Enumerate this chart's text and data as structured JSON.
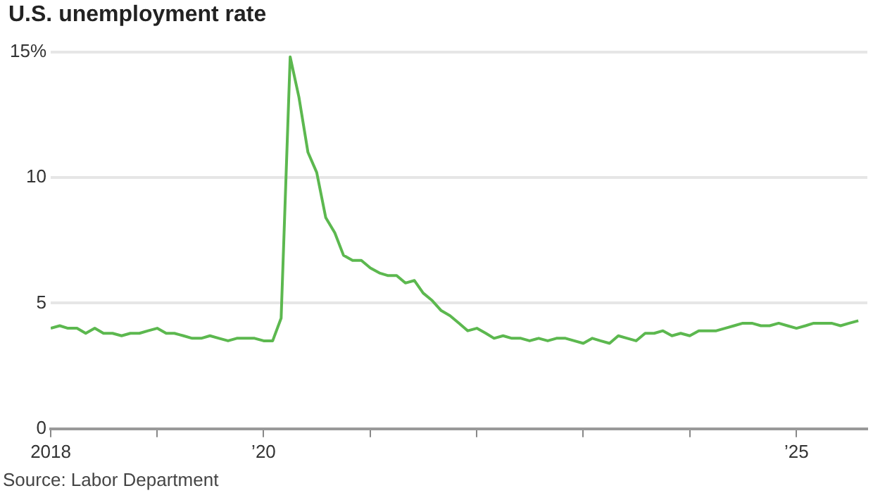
{
  "chart_data": {
    "type": "line",
    "title": "U.S. unemployment rate",
    "annotations": [
      "Source: Labor Department"
    ],
    "x": [
      "2018-01",
      "2018-02",
      "2018-03",
      "2018-04",
      "2018-05",
      "2018-06",
      "2018-07",
      "2018-08",
      "2018-09",
      "2018-10",
      "2018-11",
      "2018-12",
      "2019-01",
      "2019-02",
      "2019-03",
      "2019-04",
      "2019-05",
      "2019-06",
      "2019-07",
      "2019-08",
      "2019-09",
      "2019-10",
      "2019-11",
      "2019-12",
      "2020-01",
      "2020-02",
      "2020-03",
      "2020-04",
      "2020-05",
      "2020-06",
      "2020-07",
      "2020-08",
      "2020-09",
      "2020-10",
      "2020-11",
      "2020-12",
      "2021-01",
      "2021-02",
      "2021-03",
      "2021-04",
      "2021-05",
      "2021-06",
      "2021-07",
      "2021-08",
      "2021-09",
      "2021-10",
      "2021-11",
      "2021-12",
      "2022-01",
      "2022-02",
      "2022-03",
      "2022-04",
      "2022-05",
      "2022-06",
      "2022-07",
      "2022-08",
      "2022-09",
      "2022-10",
      "2022-11",
      "2022-12",
      "2023-01",
      "2023-02",
      "2023-03",
      "2023-04",
      "2023-05",
      "2023-06",
      "2023-07",
      "2023-08",
      "2023-09",
      "2023-10",
      "2023-11",
      "2023-12",
      "2024-01",
      "2024-02",
      "2024-03",
      "2024-04",
      "2024-05",
      "2024-06",
      "2024-07",
      "2024-08",
      "2024-09",
      "2024-10",
      "2024-11",
      "2024-12",
      "2025-01",
      "2025-02",
      "2025-03",
      "2025-04",
      "2025-05",
      "2025-06",
      "2025-07",
      "2025-08"
    ],
    "series": [
      {
        "color": "#5cb84f",
        "values": [
          4.0,
          4.1,
          4.0,
          4.0,
          3.8,
          4.0,
          3.8,
          3.8,
          3.7,
          3.8,
          3.8,
          3.9,
          4.0,
          3.8,
          3.8,
          3.7,
          3.6,
          3.6,
          3.7,
          3.6,
          3.5,
          3.6,
          3.6,
          3.6,
          3.5,
          3.5,
          4.4,
          14.8,
          13.2,
          11.0,
          10.2,
          8.4,
          7.8,
          6.9,
          6.7,
          6.7,
          6.4,
          6.2,
          6.1,
          6.1,
          5.8,
          5.9,
          5.4,
          5.1,
          4.7,
          4.5,
          4.2,
          3.9,
          4.0,
          3.8,
          3.6,
          3.7,
          3.6,
          3.6,
          3.5,
          3.6,
          3.5,
          3.6,
          3.6,
          3.5,
          3.4,
          3.6,
          3.5,
          3.4,
          3.7,
          3.6,
          3.5,
          3.8,
          3.8,
          3.9,
          3.7,
          3.8,
          3.7,
          3.9,
          3.9,
          3.9,
          4.0,
          4.1,
          4.2,
          4.2,
          4.1,
          4.1,
          4.2,
          4.1,
          4.0,
          4.1,
          4.2,
          4.2,
          4.2,
          4.1,
          4.2,
          4.3
        ]
      }
    ],
    "xlim": [
      "2018-01",
      "2025-09"
    ],
    "xticks": [
      {
        "value": "2018",
        "label": "2018"
      },
      {
        "value": "2019",
        "label": null
      },
      {
        "value": "2020",
        "label": "’20"
      },
      {
        "value": "2021",
        "label": null
      },
      {
        "value": "2022",
        "label": null
      },
      {
        "value": "2023",
        "label": null
      },
      {
        "value": "2024",
        "label": null
      },
      {
        "value": "2025",
        "label": "’25"
      }
    ],
    "ylim": [
      0,
      15
    ],
    "yticks": [
      {
        "value": 0,
        "label": "0"
      },
      {
        "value": 5,
        "label": "5"
      },
      {
        "value": 10,
        "label": "10"
      },
      {
        "value": 15,
        "label": "15%"
      }
    ],
    "grid": "y",
    "marker": "none",
    "line_style": "solid",
    "legend": false
  }
}
